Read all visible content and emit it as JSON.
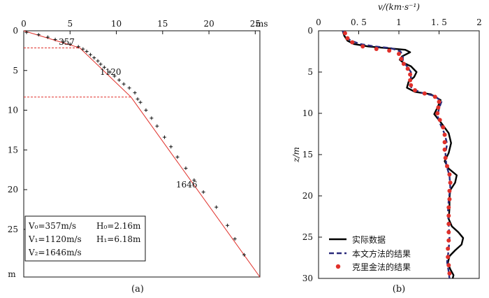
{
  "panel_a": {
    "caption": "(a)",
    "x_unit": "ms",
    "y_unit": "m",
    "segment_labels": [
      "357",
      "1120",
      "1646"
    ],
    "legend": {
      "line1_left": "V₀=357m/s",
      "line1_right": "H₀=2.16m",
      "line2_left": "V₁=1120m/s",
      "line2_right": "H₁=6.18m",
      "line3_left": "V₂=1646m/s"
    }
  },
  "panel_b": {
    "caption": "(b)",
    "x_label": "v/(km·s⁻¹)",
    "y_label": "z/m",
    "legend": [
      "实际数据",
      "本文方法的结果",
      "克里金法的结果"
    ]
  },
  "colors": {
    "actual": "#000000",
    "method": "#2a2a7a",
    "kriging": "#e0302a",
    "fit": "#e0302a"
  },
  "chart_data": [
    {
      "type": "scatter",
      "xlabel": "ms",
      "ylabel": "m",
      "xlim": [
        0,
        25.5
      ],
      "ylim": [
        0,
        31
      ],
      "x_ticks": [
        0,
        5,
        10,
        15,
        20,
        25
      ],
      "y_ticks": [
        0,
        5,
        10,
        15,
        20,
        25
      ],
      "series": [
        {
          "values_xy": [
            [
              0.3,
              0.2
            ],
            [
              1.6,
              0.5
            ],
            [
              2.6,
              0.8
            ],
            [
              3.4,
              1.1
            ],
            [
              4.3,
              1.4
            ],
            [
              5.0,
              1.7
            ],
            [
              5.9,
              2.0
            ],
            [
              6.4,
              2.3
            ],
            [
              6.8,
              2.6
            ],
            [
              7.2,
              3.0
            ],
            [
              7.6,
              3.4
            ],
            [
              8.0,
              3.8
            ],
            [
              8.3,
              4.2
            ],
            [
              8.7,
              4.6
            ],
            [
              9.3,
              5.2
            ],
            [
              9.8,
              5.7
            ],
            [
              10.3,
              6.2
            ],
            [
              10.8,
              6.7
            ],
            [
              11.4,
              7.2
            ],
            [
              12.0,
              7.8
            ],
            [
              12.3,
              8.6
            ],
            [
              12.6,
              9.0
            ],
            [
              13.2,
              10.0
            ],
            [
              13.8,
              11.0
            ],
            [
              14.4,
              12.0
            ],
            [
              15.2,
              13.4
            ],
            [
              15.9,
              14.6
            ],
            [
              16.6,
              15.9
            ],
            [
              17.5,
              17.3
            ],
            [
              18.4,
              18.8
            ],
            [
              19.4,
              20.3
            ],
            [
              20.8,
              22.2
            ],
            [
              22.0,
              24.5
            ],
            [
              22.8,
              26.2
            ],
            [
              23.8,
              28.2
            ]
          ]
        },
        {
          "name": "357",
          "values_xy": [
            [
              0.0,
              0.0
            ],
            [
              6.06,
              2.16
            ]
          ]
        },
        {
          "name": "1120",
          "values_xy": [
            [
              6.06,
              2.16
            ],
            [
              11.58,
              8.34
            ]
          ]
        },
        {
          "name": "1646",
          "values_xy": [
            [
              11.58,
              8.34
            ],
            [
              25.5,
              31.0
            ]
          ]
        }
      ]
    },
    {
      "type": "line",
      "xlabel": "v/(km·s⁻¹)",
      "ylabel": "z/m",
      "xlim": [
        0,
        2
      ],
      "ylim": [
        0,
        30
      ],
      "x_ticks": [
        0,
        0.5,
        1,
        1.5,
        2
      ],
      "y_ticks": [
        0,
        5,
        10,
        15,
        20,
        25,
        30
      ],
      "series": [
        {
          "name": "实际数据",
          "values_xy": [
            [
              0.3,
              0.0
            ],
            [
              0.32,
              0.6
            ],
            [
              0.36,
              1.2
            ],
            [
              0.44,
              1.6
            ],
            [
              0.62,
              1.9
            ],
            [
              0.85,
              2.1
            ],
            [
              1.08,
              2.3
            ],
            [
              1.14,
              2.6
            ],
            [
              1.04,
              3.1
            ],
            [
              1.01,
              3.5
            ],
            [
              1.06,
              3.9
            ],
            [
              1.15,
              4.3
            ],
            [
              1.22,
              5.0
            ],
            [
              1.19,
              5.6
            ],
            [
              1.12,
              6.2
            ],
            [
              1.1,
              6.9
            ],
            [
              1.2,
              7.4
            ],
            [
              1.4,
              7.7
            ],
            [
              1.52,
              8.4
            ],
            [
              1.48,
              9.3
            ],
            [
              1.44,
              10.1
            ],
            [
              1.53,
              11.2
            ],
            [
              1.62,
              12.4
            ],
            [
              1.65,
              13.6
            ],
            [
              1.62,
              14.8
            ],
            [
              1.57,
              15.8
            ],
            [
              1.62,
              16.7
            ],
            [
              1.72,
              17.5
            ],
            [
              1.7,
              18.4
            ],
            [
              1.64,
              19.3
            ],
            [
              1.63,
              20.2
            ],
            [
              1.63,
              21.5
            ],
            [
              1.62,
              22.8
            ],
            [
              1.66,
              23.7
            ],
            [
              1.74,
              24.4
            ],
            [
              1.8,
              25.1
            ],
            [
              1.78,
              25.9
            ],
            [
              1.7,
              26.6
            ],
            [
              1.63,
              27.3
            ],
            [
              1.61,
              28.1
            ],
            [
              1.64,
              28.9
            ],
            [
              1.68,
              29.6
            ],
            [
              1.67,
              30.0
            ]
          ]
        },
        {
          "name": "本文方法的结果",
          "values_xy": [
            [
              0.3,
              0.0
            ],
            [
              0.33,
              0.6
            ],
            [
              0.4,
              1.2
            ],
            [
              0.52,
              1.6
            ],
            [
              0.7,
              1.9
            ],
            [
              0.9,
              2.1
            ],
            [
              1.02,
              2.5
            ],
            [
              1.05,
              3.1
            ],
            [
              1.05,
              3.7
            ],
            [
              1.1,
              4.3
            ],
            [
              1.15,
              5.0
            ],
            [
              1.15,
              5.7
            ],
            [
              1.13,
              6.3
            ],
            [
              1.16,
              7.0
            ],
            [
              1.28,
              7.5
            ],
            [
              1.45,
              7.9
            ],
            [
              1.53,
              8.6
            ],
            [
              1.5,
              9.4
            ],
            [
              1.48,
              10.3
            ],
            [
              1.52,
              11.4
            ],
            [
              1.57,
              12.5
            ],
            [
              1.6,
              13.7
            ],
            [
              1.58,
              14.9
            ],
            [
              1.59,
              16.2
            ],
            [
              1.63,
              17.6
            ],
            [
              1.64,
              19.0
            ],
            [
              1.62,
              20.5
            ],
            [
              1.61,
              22.0
            ],
            [
              1.62,
              23.5
            ],
            [
              1.63,
              25.0
            ],
            [
              1.62,
              26.5
            ],
            [
              1.6,
              28.0
            ],
            [
              1.62,
              29.2
            ],
            [
              1.63,
              30.0
            ]
          ]
        },
        {
          "name": "克里金法的结果",
          "values_xy": [
            [
              0.33,
              0.3
            ],
            [
              0.36,
              0.9
            ],
            [
              0.42,
              1.4
            ],
            [
              0.55,
              1.9
            ],
            [
              0.72,
              2.2
            ],
            [
              0.88,
              2.4
            ],
            [
              1.0,
              2.8
            ],
            [
              1.03,
              3.4
            ],
            [
              1.06,
              4.0
            ],
            [
              1.11,
              4.6
            ],
            [
              1.14,
              5.3
            ],
            [
              1.14,
              6.0
            ],
            [
              1.15,
              6.6
            ],
            [
              1.2,
              7.2
            ],
            [
              1.32,
              7.6
            ],
            [
              1.45,
              8.0
            ],
            [
              1.5,
              8.6
            ],
            [
              1.49,
              9.3
            ],
            [
              1.48,
              10.0
            ],
            [
              1.51,
              10.8
            ],
            [
              1.55,
              11.7
            ],
            [
              1.57,
              12.6
            ],
            [
              1.57,
              13.5
            ],
            [
              1.57,
              14.4
            ],
            [
              1.58,
              15.4
            ],
            [
              1.6,
              16.4
            ],
            [
              1.63,
              17.4
            ],
            [
              1.64,
              18.4
            ],
            [
              1.63,
              19.4
            ],
            [
              1.63,
              20.4
            ],
            [
              1.62,
              21.4
            ],
            [
              1.62,
              22.4
            ],
            [
              1.62,
              23.4
            ],
            [
              1.62,
              24.4
            ],
            [
              1.62,
              25.4
            ],
            [
              1.61,
              26.4
            ],
            [
              1.61,
              27.4
            ],
            [
              1.62,
              28.4
            ],
            [
              1.63,
              29.4
            ]
          ]
        }
      ]
    }
  ]
}
